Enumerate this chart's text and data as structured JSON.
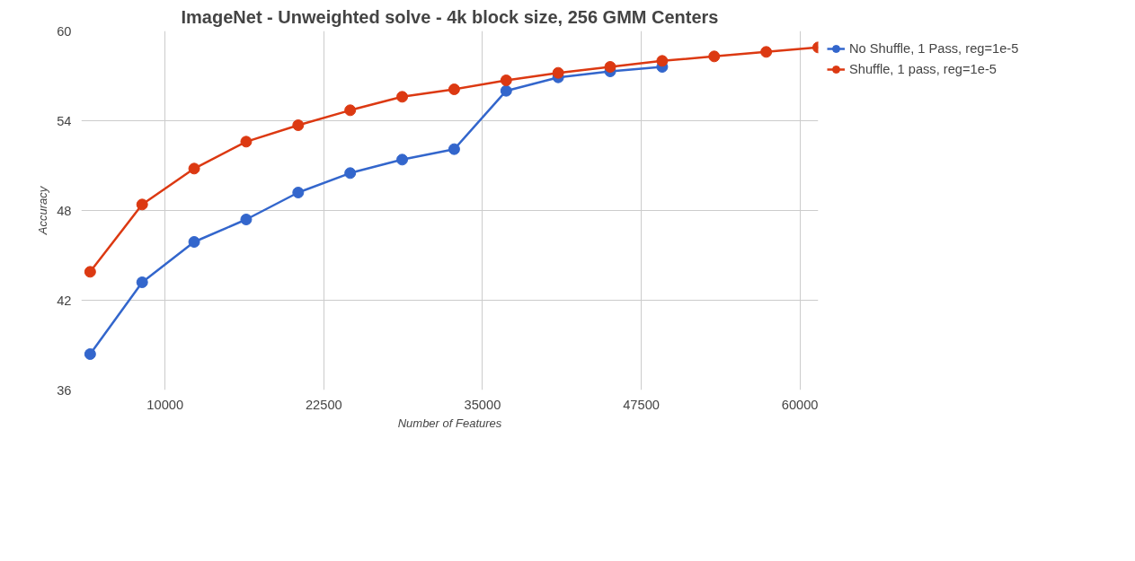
{
  "chart_data": {
    "type": "line",
    "title": "ImageNet - Unweighted solve - 4k block size, 256 GMM Centers",
    "xlabel": "Number of Features",
    "ylabel": "Accuracy",
    "x": [
      4096,
      8192,
      12288,
      16384,
      20480,
      24576,
      28672,
      32768,
      36864,
      40960,
      45056,
      49152,
      53248,
      57344,
      61440
    ],
    "series": [
      {
        "name": "No Shuffle, 1 Pass, reg=1e-5",
        "color": "#3366cc",
        "values": [
          38.4,
          43.2,
          45.9,
          47.4,
          49.2,
          50.5,
          51.4,
          52.1,
          56.0,
          56.9,
          57.3,
          57.6,
          null,
          null,
          null
        ]
      },
      {
        "name": "Shuffle, 1 pass, reg=1e-5",
        "color": "#dc3912",
        "values": [
          43.9,
          48.4,
          50.8,
          52.6,
          53.7,
          54.7,
          55.6,
          56.1,
          56.7,
          57.2,
          57.6,
          58.0,
          58.3,
          58.6,
          58.9
        ]
      }
    ],
    "xlim": [
      3400,
      61440
    ],
    "xticks": [
      10000,
      22500,
      35000,
      47500,
      60000
    ],
    "ylim": [
      36,
      60
    ],
    "yticks": [
      36,
      42,
      48,
      54,
      60
    ],
    "grid": true,
    "legend": "right",
    "marker": "circle",
    "line_style": "solid"
  }
}
